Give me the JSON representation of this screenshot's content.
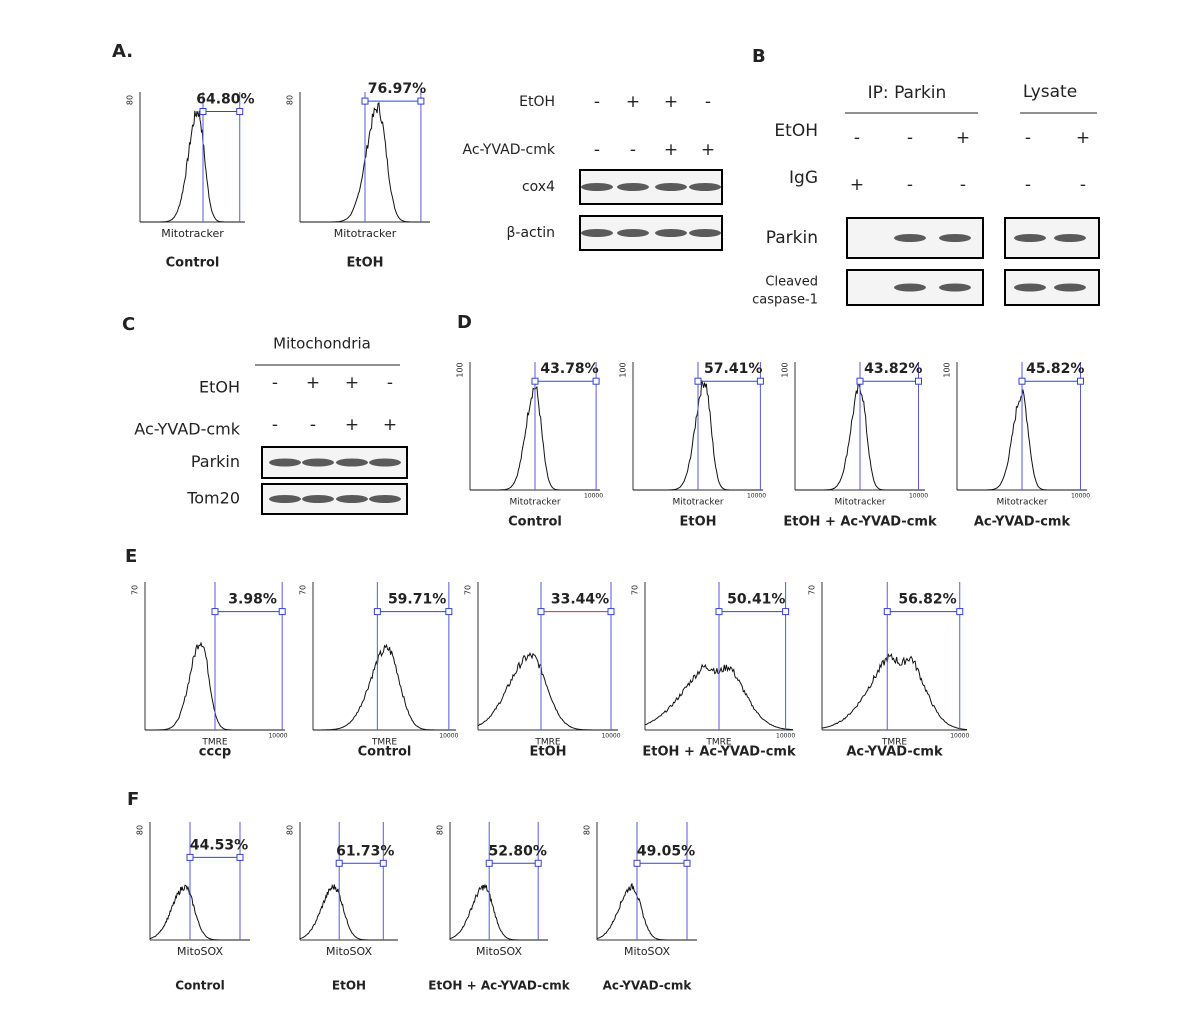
{
  "panel_a": {
    "label": "A.",
    "histograms": [
      {
        "y_tick": "80",
        "gate_label": "64.80%",
        "x_label": "Mitotracker",
        "caption": "Control"
      },
      {
        "y_tick": "80",
        "gate_label": "76.97%",
        "x_label": "Mitotracker",
        "caption": "EtOH"
      }
    ],
    "blot": {
      "rows": [
        {
          "name": "EtOH",
          "signs": [
            "-",
            "+",
            "+",
            "-"
          ]
        },
        {
          "name": "Ac-YVAD-cmk",
          "signs": [
            "-",
            "-",
            "+",
            "+"
          ]
        }
      ],
      "bands": [
        "cox4",
        "β-actin"
      ]
    }
  },
  "panel_b": {
    "label": "B",
    "groups": [
      "IP: Parkin",
      "Lysate"
    ],
    "rows": [
      {
        "name": "EtOH",
        "signs": [
          "-",
          "-",
          "+",
          "-",
          "+"
        ]
      },
      {
        "name": "IgG",
        "signs": [
          "+",
          "-",
          "-",
          "-",
          "-"
        ]
      }
    ],
    "bands": [
      [
        "Parkin"
      ],
      [
        "Cleaved",
        "caspase-1"
      ]
    ]
  },
  "panel_c": {
    "label": "C",
    "group": "Mitochondria",
    "rows": [
      {
        "name": "EtOH",
        "signs": [
          "-",
          "+",
          "+",
          "-"
        ]
      },
      {
        "name": "Ac-YVAD-cmk",
        "signs": [
          "-",
          "-",
          "+",
          "+"
        ]
      }
    ],
    "bands": [
      "Parkin",
      "Tom20"
    ]
  },
  "panel_d": {
    "label": "D",
    "histograms": [
      {
        "y_tick": "100",
        "x_tick": "10000",
        "gate_label": "43.78%",
        "x_label": "Mitotracker",
        "caption": "Control"
      },
      {
        "y_tick": "100",
        "x_tick": "10000",
        "gate_label": "57.41%",
        "x_label": "Mitotracker",
        "caption": "EtOH"
      },
      {
        "y_tick": "100",
        "x_tick": "10000",
        "gate_label": "43.82%",
        "x_label": "Mitotracker",
        "caption": "EtOH + Ac-YVAD-cmk"
      },
      {
        "y_tick": "100",
        "x_tick": "10000",
        "gate_label": "45.82%",
        "x_label": "Mitotracker",
        "caption": "Ac-YVAD-cmk"
      }
    ]
  },
  "panel_e": {
    "label": "E",
    "histograms": [
      {
        "y_tick": "70",
        "x_tick": "10000",
        "gate_label": "3.98%",
        "x_label": "TMRE",
        "caption": "cccp"
      },
      {
        "y_tick": "70",
        "x_tick": "10000",
        "gate_label": "59.71%",
        "x_label": "TMRE",
        "caption": "Control"
      },
      {
        "y_tick": "70",
        "x_tick": "10000",
        "gate_label": "33.44%",
        "x_label": "TMRE",
        "caption": "EtOH"
      },
      {
        "y_tick": "70",
        "x_tick": "10000",
        "gate_label": "50.41%",
        "x_label": "TMRE",
        "caption": "EtOH + Ac-YVAD-cmk"
      },
      {
        "y_tick": "70",
        "x_tick": "10000",
        "gate_label": "56.82%",
        "x_label": "TMRE",
        "caption": "Ac-YVAD-cmk"
      }
    ]
  },
  "panel_f": {
    "label": "F",
    "histograms": [
      {
        "y_tick": "80",
        "gate_label": "44.53%",
        "x_label": "MitoSOX",
        "caption": "Control"
      },
      {
        "y_tick": "80",
        "gate_label": "61.73%",
        "x_label": "MitoSOX",
        "caption": "EtOH"
      },
      {
        "y_tick": "80",
        "gate_label": "52.80%",
        "x_label": "MitoSOX",
        "caption": "EtOH + Ac-YVAD-cmk"
      },
      {
        "y_tick": "80",
        "gate_label": "49.05%",
        "x_label": "MitoSOX",
        "caption": "Ac-YVAD-cmk"
      }
    ]
  }
}
